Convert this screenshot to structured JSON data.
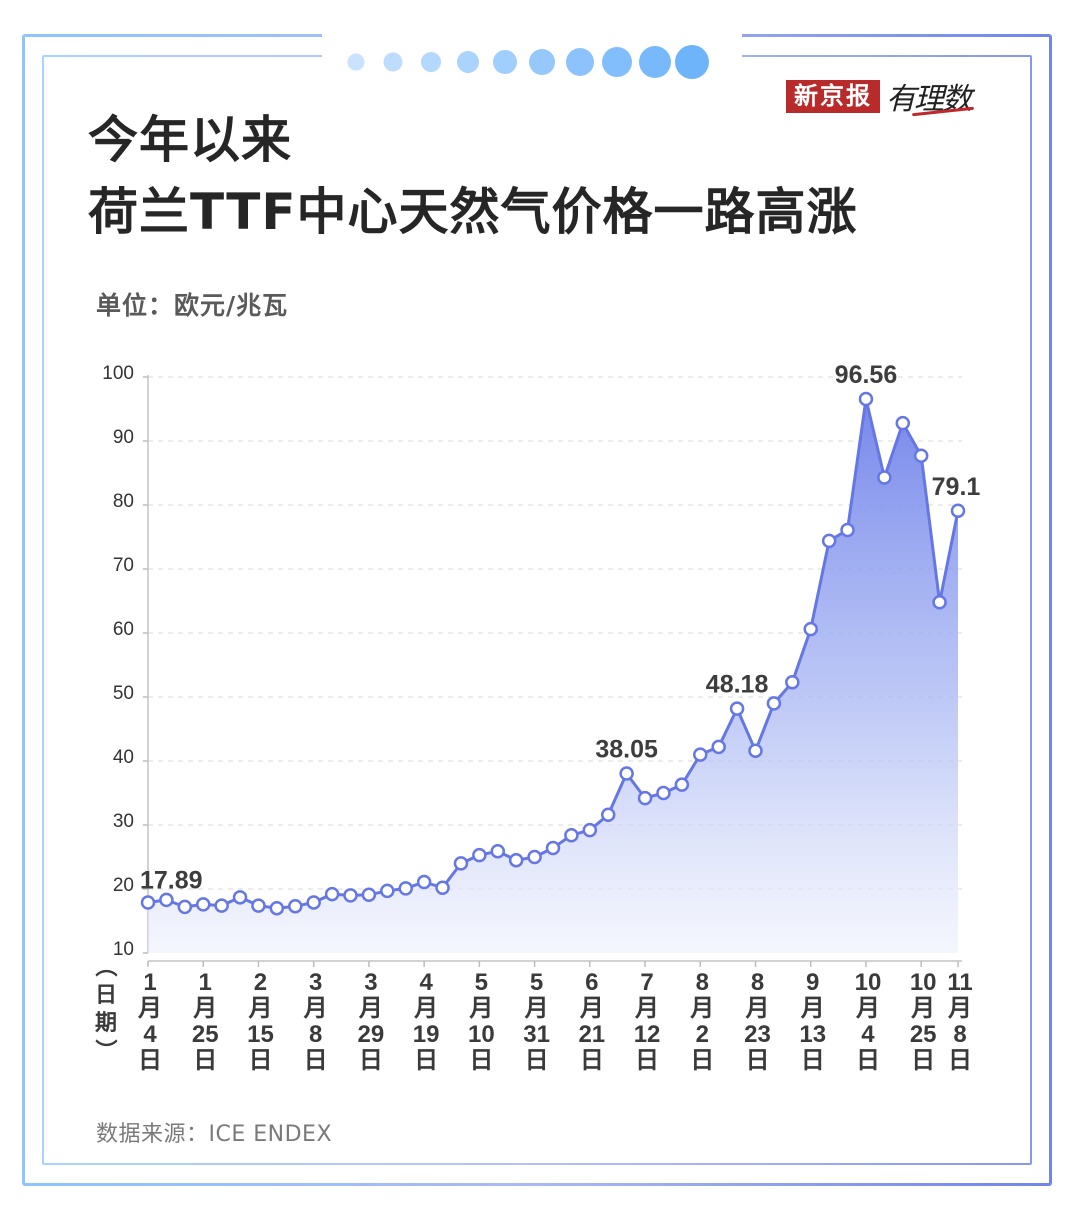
{
  "brand": {
    "logo": "新京报",
    "sub": "有理数"
  },
  "title_line1": "今年以来",
  "title_line2": "荷兰TTF中心天然气价格一路高涨",
  "unit_label": "单位：欧元/兆瓦",
  "source": {
    "label": "数据来源：",
    "value": "ICE ENDEX"
  },
  "colors": {
    "line": "#6577e4",
    "marker_fill": "#ffffff",
    "accent": "#7fb4ff",
    "brand_red": "#b92b2b"
  },
  "chart_data": {
    "type": "area",
    "title": "荷兰TTF中心天然气价格一路高涨",
    "ylabel": "单位：欧元/兆瓦",
    "xlabel": "（日期）",
    "ylim": [
      10,
      100
    ],
    "yticks": [
      10,
      20,
      30,
      40,
      50,
      60,
      70,
      80,
      90,
      100
    ],
    "grid": true,
    "legend": "none",
    "x_tick_labels": [
      {
        "month": "1",
        "day": "4"
      },
      {
        "month": "1",
        "day": "25"
      },
      {
        "month": "2",
        "day": "15"
      },
      {
        "month": "3",
        "day": "8"
      },
      {
        "month": "3",
        "day": "29"
      },
      {
        "month": "4",
        "day": "19"
      },
      {
        "month": "5",
        "day": "10"
      },
      {
        "month": "5",
        "day": "31"
      },
      {
        "month": "6",
        "day": "21"
      },
      {
        "month": "7",
        "day": "12"
      },
      {
        "month": "8",
        "day": "2"
      },
      {
        "month": "8",
        "day": "23"
      },
      {
        "month": "9",
        "day": "13"
      },
      {
        "month": "10",
        "day": "4"
      },
      {
        "month": "10",
        "day": "25"
      },
      {
        "month": "11",
        "day": "8"
      }
    ],
    "x_tick_index": [
      0,
      3,
      6,
      9,
      12,
      15,
      18,
      21,
      24,
      27,
      30,
      33,
      36,
      39,
      42,
      44
    ],
    "values": [
      17.89,
      18.3,
      17.2,
      17.6,
      17.4,
      18.7,
      17.4,
      17.0,
      17.3,
      17.9,
      19.2,
      19.0,
      19.1,
      19.7,
      20.1,
      21.1,
      20.2,
      24.0,
      25.3,
      25.9,
      24.5,
      25.0,
      26.4,
      28.4,
      29.2,
      31.6,
      38.05,
      34.2,
      35.0,
      36.3,
      41.0,
      42.2,
      48.18,
      41.6,
      49.0,
      52.3,
      60.6,
      74.4,
      76.1,
      96.56,
      84.3,
      92.8,
      87.7,
      64.8,
      79.1
    ],
    "data_labels": [
      {
        "index": 0,
        "text": "17.89"
      },
      {
        "index": 26,
        "text": "38.05"
      },
      {
        "index": 32,
        "text": "48.18"
      },
      {
        "index": 39,
        "text": "96.56"
      },
      {
        "index": 44,
        "text": "79.1"
      }
    ]
  }
}
